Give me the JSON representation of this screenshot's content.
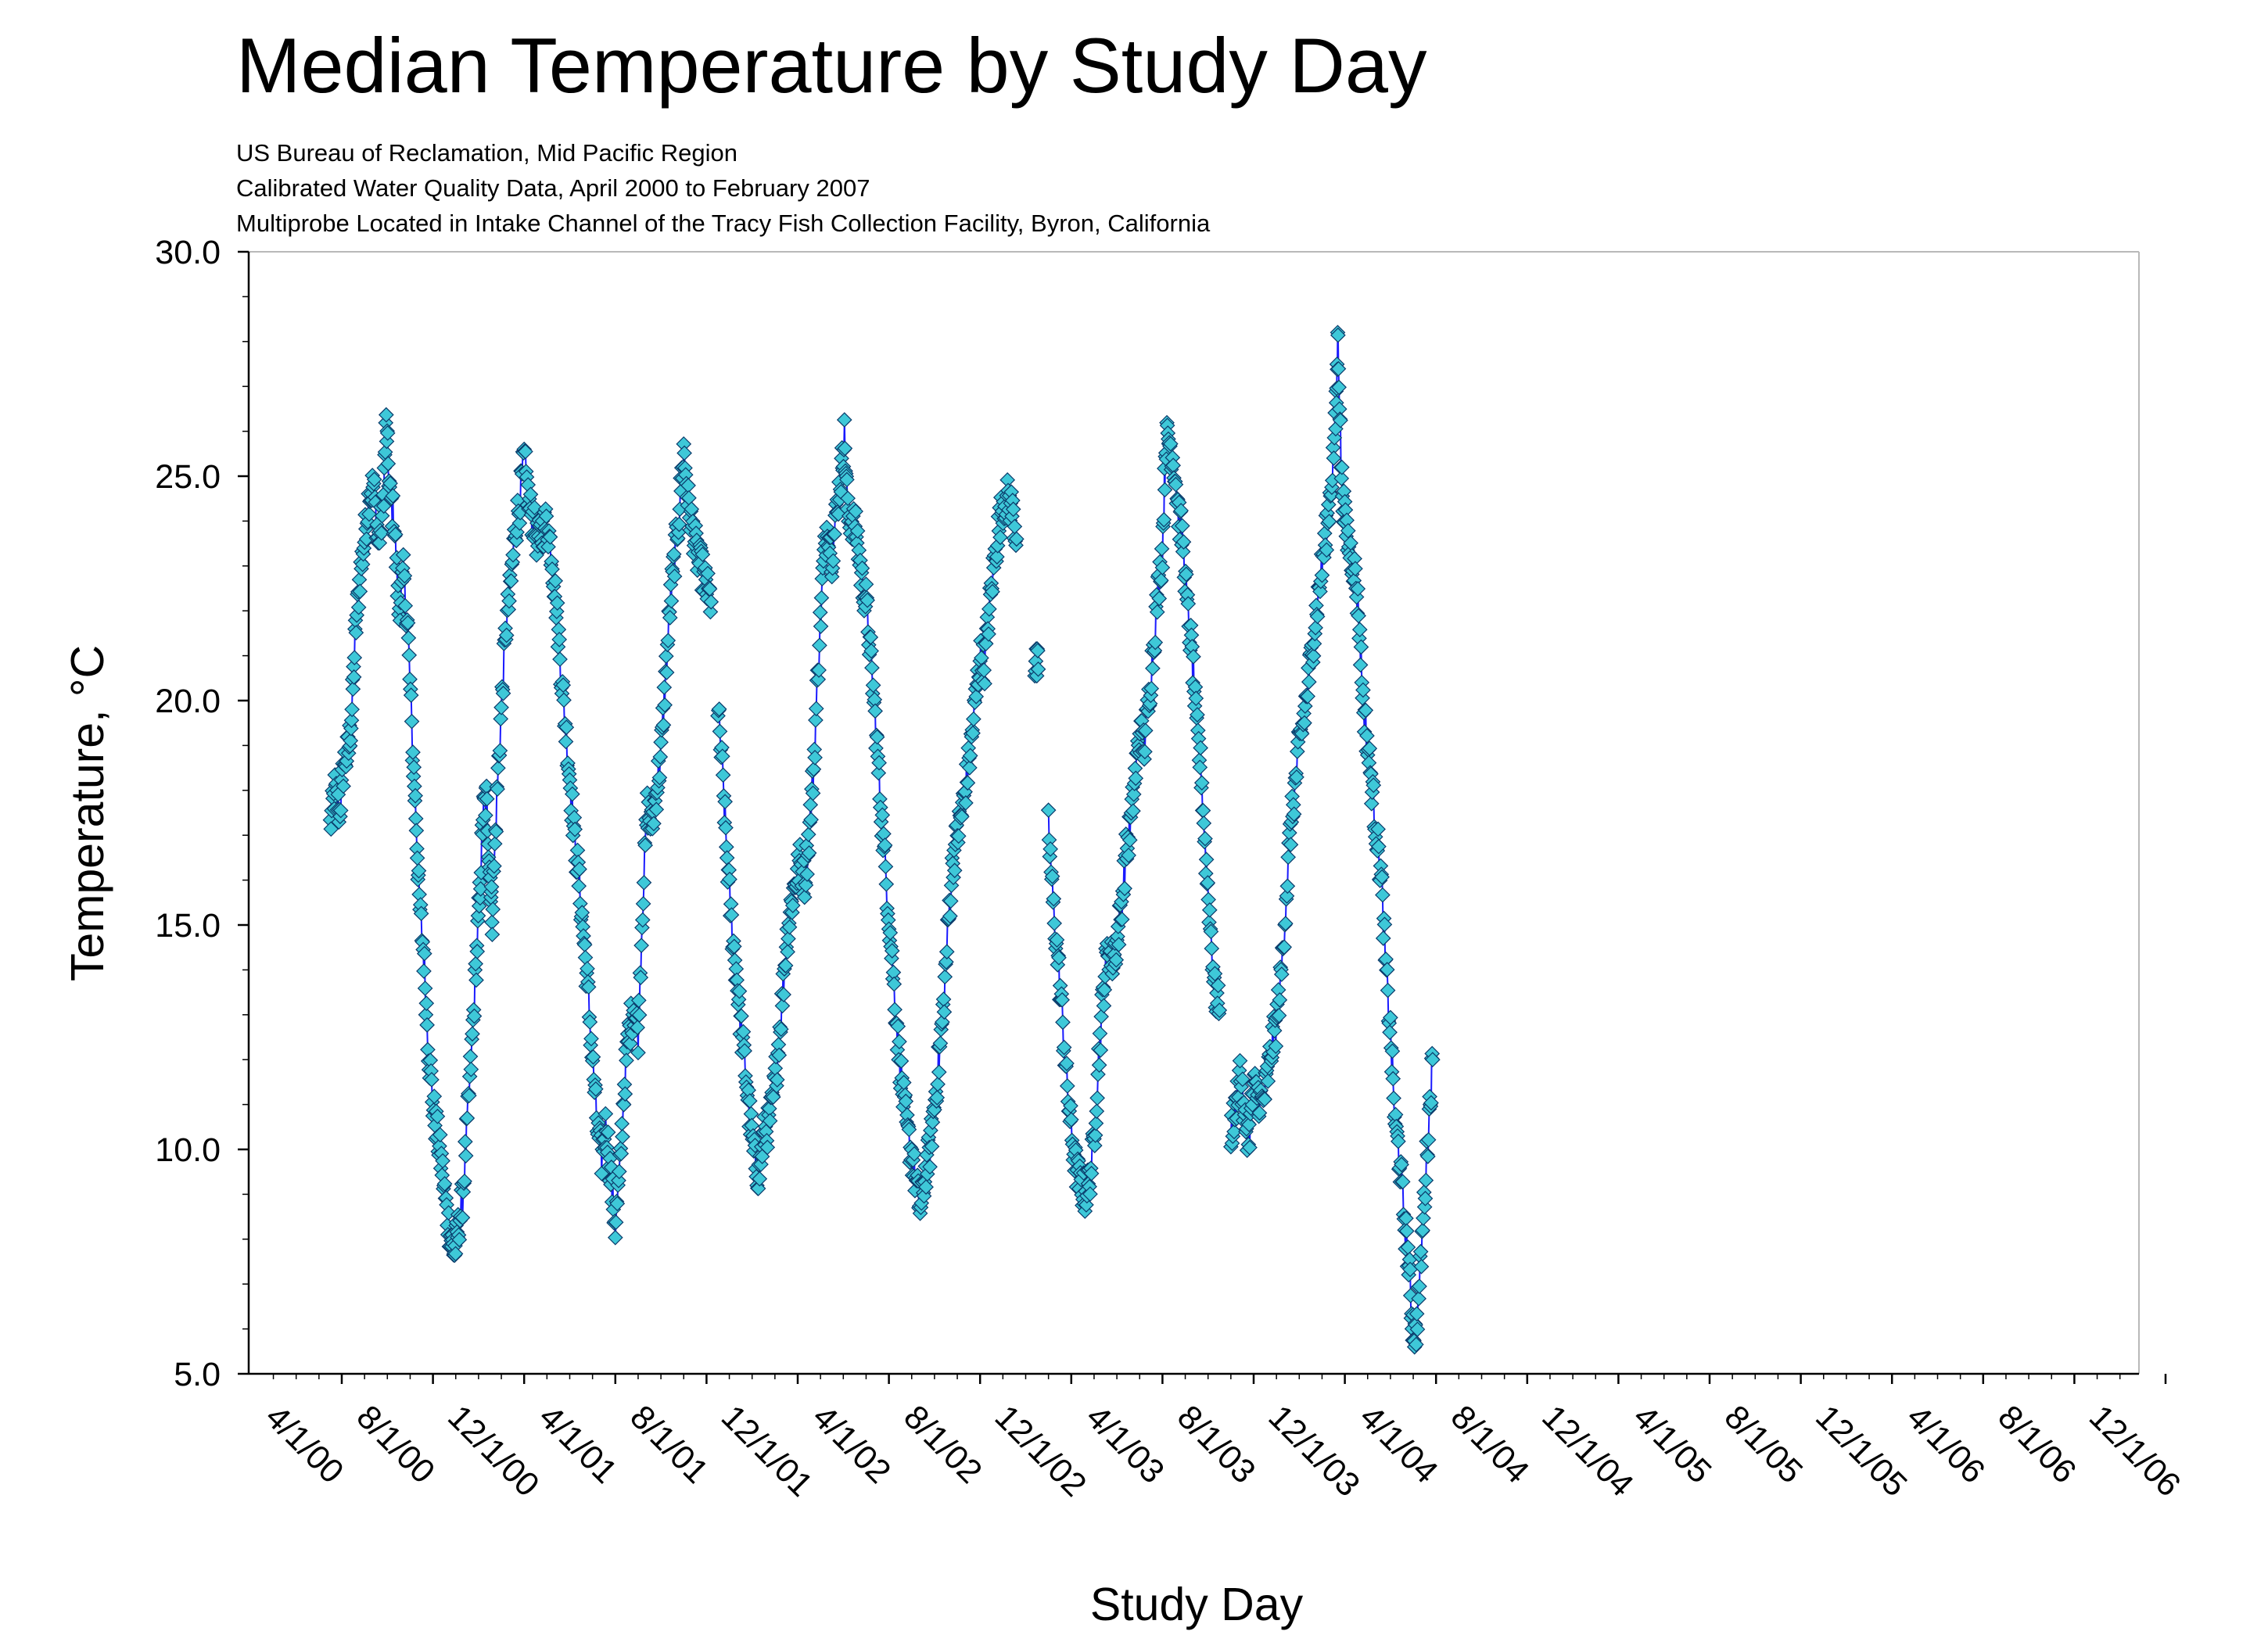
{
  "chart_data": {
    "type": "line+scatter",
    "title": "Median Temperature by Study Day",
    "subtitles": [
      "US Bureau of Reclamation, Mid Pacific Region",
      "Calibrated Water Quality Data, April 2000 to February 2007",
      "Multiprobe Located in Intake Channel of the Tracy Fish Collection Facility, Byron, California"
    ],
    "xlabel": "Study Day",
    "ylabel": "Temperature, °C",
    "ylim": [
      5.0,
      30.0
    ],
    "y_ticks": [
      "5.0",
      "10.0",
      "15.0",
      "20.0",
      "25.0",
      "30.0"
    ],
    "x_ticks": [
      "4/1/00",
      "8/1/00",
      "12/1/00",
      "4/1/01",
      "8/1/01",
      "12/1/01",
      "4/1/02",
      "8/1/02",
      "12/1/02",
      "4/1/03",
      "8/1/03",
      "12/1/03",
      "4/1/04",
      "8/1/04",
      "12/1/04",
      "4/1/05",
      "8/1/05",
      "12/1/05",
      "4/1/06",
      "8/1/06",
      "12/1/06"
    ],
    "x_range_months": [
      -0.5,
      20.75
    ],
    "marker_color": "#3ec8d8",
    "marker_edge": "#0a3a6a",
    "line_color": "#1a1aff",
    "series": [
      {
        "name": "Median Temperature",
        "segments": [
          [
            [
              -0.5,
              17.2
            ],
            [
              -0.3,
              18.0
            ],
            [
              -0.1,
              17.5
            ],
            [
              0.1,
              18.6
            ],
            [
              0.3,
              18.9
            ],
            [
              0.45,
              19.8
            ],
            [
              0.6,
              21.5
            ],
            [
              0.8,
              22.8
            ],
            [
              1.0,
              23.6
            ],
            [
              1.2,
              24.6
            ],
            [
              1.4,
              24.8
            ],
            [
              1.6,
              23.5
            ],
            [
              1.8,
              24.2
            ],
            [
              1.95,
              26.2
            ],
            [
              2.1,
              24.6
            ],
            [
              2.3,
              24.0
            ],
            [
              2.5,
              22.0
            ],
            [
              2.7,
              22.8
            ],
            [
              2.9,
              21.6
            ],
            [
              3.1,
              19.0
            ],
            [
              3.25,
              17.5
            ],
            [
              3.4,
              15.5
            ],
            [
              3.6,
              14.3
            ],
            [
              3.8,
              12.3
            ],
            [
              4.0,
              11.0
            ],
            [
              4.2,
              10.3
            ],
            [
              4.4,
              9.6
            ],
            [
              4.6,
              8.6
            ],
            [
              4.8,
              8.0
            ],
            [
              4.95,
              7.7
            ],
            [
              5.1,
              8.2
            ],
            [
              5.3,
              8.9
            ],
            [
              5.5,
              10.5
            ],
            [
              5.7,
              12.2
            ],
            [
              5.9,
              14.2
            ],
            [
              6.05,
              15.6
            ],
            [
              6.2,
              17.5
            ],
            [
              6.35,
              17.8
            ],
            [
              6.5,
              16.2
            ],
            [
              6.6,
              15.2
            ],
            [
              6.8,
              17.8
            ],
            [
              7.0,
              19.8
            ],
            [
              7.2,
              21.6
            ],
            [
              7.4,
              22.5
            ],
            [
              7.6,
              23.8
            ],
            [
              7.8,
              24.4
            ],
            [
              8.0,
              25.4
            ],
            [
              8.2,
              24.4
            ],
            [
              8.4,
              24.0
            ],
            [
              8.6,
              23.5
            ],
            [
              8.8,
              23.8
            ],
            [
              9.0,
              24.0
            ],
            [
              9.2,
              23.3
            ],
            [
              9.4,
              22.2
            ],
            [
              9.6,
              20.8
            ],
            [
              9.8,
              19.5
            ],
            [
              10.0,
              18.3
            ],
            [
              10.2,
              17.0
            ],
            [
              10.4,
              16.0
            ],
            [
              10.6,
              14.8
            ],
            [
              10.8,
              13.5
            ],
            [
              11.0,
              12.0
            ],
            [
              11.2,
              10.5
            ],
            [
              11.4,
              9.8
            ],
            [
              11.6,
              10.6
            ],
            [
              11.8,
              9.4
            ],
            [
              12.0,
              8.3
            ],
            [
              12.2,
              9.5
            ],
            [
              12.4,
              11.5
            ],
            [
              12.6,
              12.6
            ],
            [
              12.8,
              13.2
            ],
            [
              13.0,
              12.6
            ],
            [
              13.2,
              15.5
            ],
            [
              13.4,
              17.6
            ],
            [
              13.6,
              17.2
            ],
            [
              13.8,
              18.0
            ],
            [
              14.0,
              18.8
            ],
            [
              14.2,
              20.5
            ],
            [
              14.4,
              22.1
            ],
            [
              14.6,
              23.2
            ],
            [
              14.8,
              24.2
            ],
            [
              15.0,
              25.6
            ],
            [
              15.2,
              24.4
            ],
            [
              15.4,
              23.8
            ],
            [
              15.6,
              23.2
            ],
            [
              15.8,
              22.9
            ],
            [
              16.0,
              22.5
            ],
            [
              16.2,
              22.2
            ]
          ],
          [
            [
              16.5,
              19.8
            ],
            [
              16.7,
              18.4
            ],
            [
              16.9,
              16.5
            ],
            [
              17.1,
              15.0
            ],
            [
              17.3,
              14.0
            ],
            [
              17.5,
              12.8
            ],
            [
              17.7,
              11.8
            ],
            [
              17.9,
              10.7
            ],
            [
              18.1,
              9.8
            ],
            [
              18.3,
              9.4
            ],
            [
              18.5,
              10.3
            ],
            [
              18.7,
              10.5
            ],
            [
              18.9,
              11.0
            ],
            [
              19.1,
              12.0
            ],
            [
              19.3,
              13.2
            ],
            [
              19.5,
              14.6
            ],
            [
              19.7,
              15.4
            ],
            [
              19.9,
              16.0
            ],
            [
              20.1,
              16.4
            ],
            [
              20.3,
              16.0
            ],
            [
              20.5,
              17.0
            ],
            [
              20.7,
              18.5
            ],
            [
              20.9,
              20.8
            ],
            [
              21.1,
              22.8
            ],
            [
              21.3,
              24.0
            ],
            [
              21.5,
              23.2
            ],
            [
              21.7,
              24.2
            ],
            [
              21.9,
              25.0
            ],
            [
              22.05,
              25.9
            ],
            [
              22.2,
              24.1
            ],
            [
              22.4,
              24.0
            ],
            [
              22.6,
              23.7
            ],
            [
              22.8,
              22.7
            ],
            [
              23.0,
              22.2
            ],
            [
              23.2,
              21.0
            ],
            [
              23.4,
              19.6
            ],
            [
              23.6,
              18.0
            ],
            [
              23.8,
              16.6
            ],
            [
              24.0,
              15.2
            ],
            [
              24.2,
              13.8
            ],
            [
              24.4,
              12.4
            ],
            [
              24.6,
              11.3
            ],
            [
              24.8,
              10.4
            ],
            [
              25.0,
              9.9
            ],
            [
              25.2,
              9.2
            ],
            [
              25.4,
              8.6
            ],
            [
              25.6,
              9.5
            ],
            [
              25.8,
              10.0
            ],
            [
              26.0,
              11.0
            ],
            [
              26.2,
              12.0
            ],
            [
              26.4,
              13.2
            ],
            [
              26.6,
              15.0
            ],
            [
              26.8,
              16.4
            ],
            [
              27.0,
              17.0
            ],
            [
              27.2,
              17.5
            ],
            [
              27.4,
              18.2
            ],
            [
              27.6,
              19.0
            ],
            [
              27.8,
              20.0
            ],
            [
              28.0,
              21.0
            ],
            [
              28.2,
              20.8
            ],
            [
              28.4,
              22.0
            ],
            [
              28.6,
              23.0
            ],
            [
              28.8,
              23.8
            ],
            [
              29.0,
              24.4
            ],
            [
              29.2,
              24.5
            ],
            [
              29.4,
              24.3
            ],
            [
              29.6,
              23.6
            ]
          ],
          [
            [
              30.4,
              20.8
            ],
            [
              30.55,
              20.7
            ]
          ],
          [
            [
              31.0,
              17.2
            ],
            [
              31.2,
              15.5
            ],
            [
              31.4,
              14.3
            ],
            [
              31.6,
              13.0
            ],
            [
              31.8,
              11.5
            ],
            [
              32.0,
              10.4
            ],
            [
              32.2,
              9.6
            ],
            [
              32.4,
              9.2
            ],
            [
              32.6,
              9.0
            ],
            [
              32.8,
              9.3
            ],
            [
              33.0,
              10.2
            ],
            [
              33.2,
              12.0
            ],
            [
              33.4,
              13.5
            ],
            [
              33.6,
              14.5
            ],
            [
              33.8,
              14.2
            ],
            [
              34.0,
              14.6
            ],
            [
              34.2,
              15.4
            ],
            [
              34.4,
              16.6
            ],
            [
              34.6,
              17.2
            ],
            [
              34.8,
              18.3
            ],
            [
              35.0,
              19.3
            ],
            [
              35.2,
              19.0
            ],
            [
              35.4,
              20.0
            ],
            [
              35.6,
              21.2
            ],
            [
              35.8,
              22.4
            ],
            [
              36.0,
              23.4
            ],
            [
              36.15,
              25.8
            ],
            [
              36.3,
              25.8
            ],
            [
              36.5,
              25.3
            ],
            [
              36.7,
              24.2
            ],
            [
              36.9,
              23.5
            ],
            [
              37.1,
              22.0
            ],
            [
              37.3,
              21.0
            ],
            [
              37.5,
              19.4
            ],
            [
              37.7,
              18.4
            ],
            [
              37.9,
              16.5
            ],
            [
              38.1,
              15.0
            ],
            [
              38.3,
              13.5
            ],
            [
              38.5,
              13.1
            ]
          ],
          [
            [
              39.0,
              10.4
            ],
            [
              39.2,
              10.8
            ],
            [
              39.4,
              11.8
            ],
            [
              39.6,
              10.6
            ],
            [
              39.8,
              10.3
            ],
            [
              40.0,
              11.4
            ],
            [
              40.2,
              11.2
            ],
            [
              40.4,
              11.0
            ],
            [
              40.6,
              11.6
            ],
            [
              40.8,
              12.3
            ],
            [
              41.0,
              12.8
            ],
            [
              41.2,
              13.8
            ],
            [
              41.4,
              15.4
            ],
            [
              41.6,
              17.0
            ],
            [
              41.8,
              18.0
            ],
            [
              42.0,
              19.0
            ],
            [
              42.2,
              19.6
            ],
            [
              42.4,
              20.4
            ],
            [
              42.6,
              21.3
            ],
            [
              42.8,
              22.2
            ],
            [
              43.0,
              23.0
            ],
            [
              43.2,
              23.8
            ],
            [
              43.4,
              24.8
            ],
            [
              43.6,
              26.2
            ],
            [
              43.7,
              28.2
            ],
            [
              43.85,
              25.0
            ],
            [
              44.0,
              24.0
            ],
            [
              44.2,
              23.4
            ],
            [
              44.4,
              23.0
            ],
            [
              44.6,
              22.0
            ],
            [
              44.8,
              20.0
            ],
            [
              45.0,
              19.0
            ],
            [
              45.2,
              18.0
            ],
            [
              45.4,
              17.0
            ],
            [
              45.6,
              16.0
            ],
            [
              45.8,
              14.0
            ],
            [
              46.0,
              12.6
            ],
            [
              46.2,
              10.6
            ],
            [
              46.4,
              9.8
            ],
            [
              46.6,
              8.5
            ],
            [
              46.8,
              7.5
            ],
            [
              46.95,
              6.2
            ],
            [
              47.1,
              5.8
            ],
            [
              47.3,
              7.2
            ],
            [
              47.5,
              9.0
            ],
            [
              47.7,
              10.8
            ],
            [
              47.85,
              12.0
            ]
          ]
        ]
      }
    ]
  }
}
